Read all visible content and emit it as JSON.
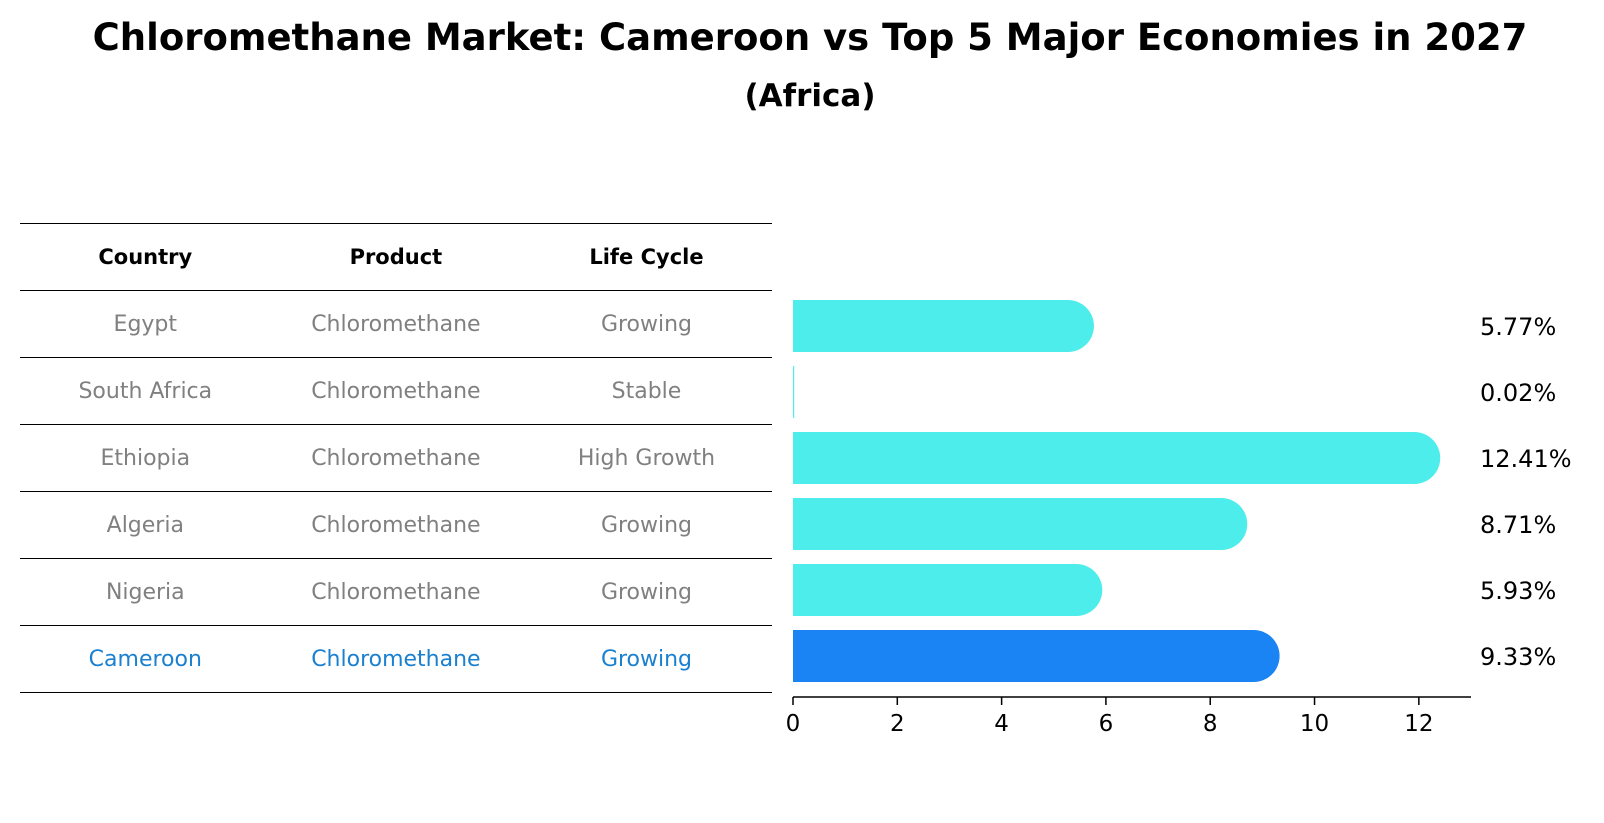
{
  "title": "Chloromethane Market: Cameroon vs Top 5 Major Economies in 2027",
  "subtitle": "(Africa)",
  "table": {
    "headers": [
      "Country",
      "Product",
      "Life Cycle"
    ],
    "rows": [
      {
        "country": "Egypt",
        "product": "Chloromethane",
        "life_cycle": "Growing"
      },
      {
        "country": "South Africa",
        "product": "Chloromethane",
        "life_cycle": "Stable"
      },
      {
        "country": "Ethiopia",
        "product": "Chloromethane",
        "life_cycle": "High Growth"
      },
      {
        "country": "Algeria",
        "product": "Chloromethane",
        "life_cycle": "Growing"
      },
      {
        "country": "Nigeria",
        "product": "Chloromethane",
        "life_cycle": "Growing"
      },
      {
        "country": "Cameroon",
        "product": "Chloromethane",
        "life_cycle": "Growing"
      }
    ]
  },
  "chart_data": {
    "type": "bar",
    "orientation": "horizontal",
    "title": "Chloromethane Market: Cameroon vs Top 5 Major Economies in 2027",
    "subtitle": "(Africa)",
    "categories": [
      "Egypt",
      "South Africa",
      "Ethiopia",
      "Algeria",
      "Nigeria",
      "Cameroon"
    ],
    "values": [
      5.77,
      0.02,
      12.41,
      8.71,
      5.93,
      9.33
    ],
    "value_labels": [
      "5.77%",
      "0.02%",
      "12.41%",
      "8.71%",
      "5.93%",
      "9.33%"
    ],
    "highlight": "Cameroon",
    "xlim": [
      0,
      13
    ],
    "xticks": [
      0,
      2,
      4,
      6,
      8,
      10,
      12
    ],
    "xlabel": "",
    "ylabel": "",
    "grid": false,
    "colors": {
      "default": "#4dedeb",
      "highlight": "#1a84f5"
    }
  }
}
